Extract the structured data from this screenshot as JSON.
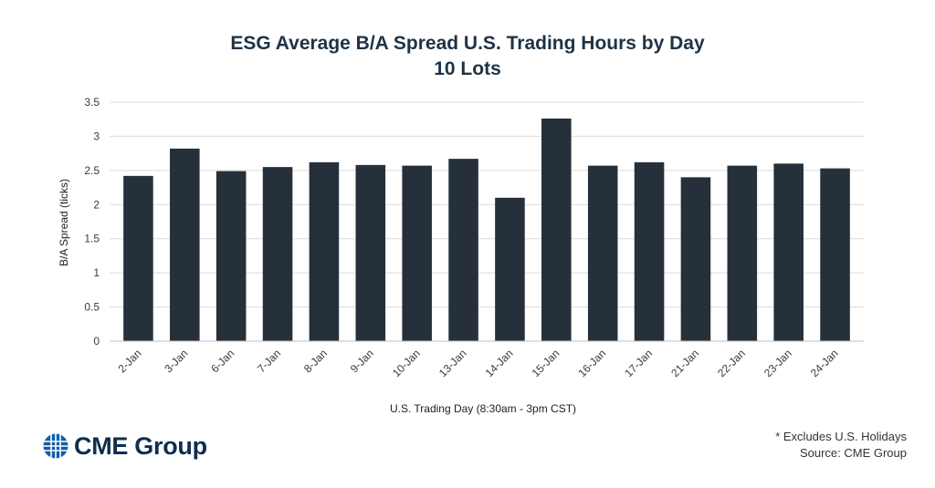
{
  "chart_data": {
    "type": "bar",
    "title": "ESG Average B/A Spread U.S. Trading Hours by Day",
    "subtitle": "10 Lots",
    "xlabel": "U.S. Trading Day (8:30am - 3pm CST)",
    "ylabel": "B/A Spread (ticks)",
    "ylim": [
      0,
      3.5
    ],
    "yticks": [
      "0",
      "0.5",
      "1",
      "1.5",
      "2",
      "2.5",
      "3",
      "3.5"
    ],
    "grid": true,
    "categories": [
      "2-Jan",
      "3-Jan",
      "6-Jan",
      "7-Jan",
      "8-Jan",
      "9-Jan",
      "10-Jan",
      "13-Jan",
      "14-Jan",
      "15-Jan",
      "16-Jan",
      "17-Jan",
      "21-Jan",
      "22-Jan",
      "23-Jan",
      "24-Jan"
    ],
    "values": [
      2.42,
      2.82,
      2.49,
      2.55,
      2.62,
      2.58,
      2.57,
      2.67,
      2.1,
      3.26,
      2.57,
      2.62,
      2.4,
      2.57,
      2.6,
      2.53
    ],
    "bar_color": "#25303b"
  },
  "branding": {
    "logo_text": "CME Group",
    "logo_color": "#0f5fa8"
  },
  "footnote": {
    "line1": "* Excludes U.S. Holidays",
    "line2": "Source: CME Group"
  }
}
